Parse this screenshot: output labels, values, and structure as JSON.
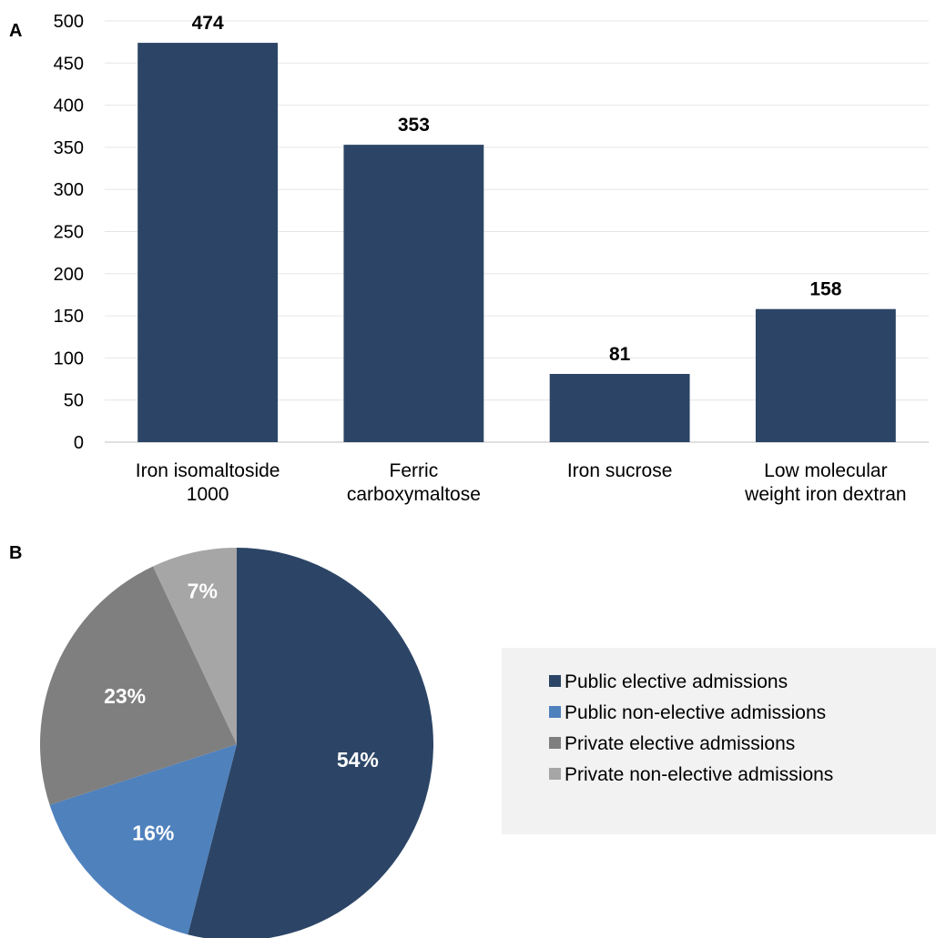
{
  "chart_data": [
    {
      "panel": "A",
      "type": "bar",
      "categories": [
        [
          "Iron isomaltoside",
          "1000"
        ],
        [
          "Ferric",
          "carboxymaltose"
        ],
        [
          "Iron sucrose"
        ],
        [
          "Low molecular",
          "weight iron dextran"
        ]
      ],
      "values": [
        474,
        353,
        81,
        158
      ],
      "data_labels": [
        "474",
        "353",
        "81",
        "158"
      ],
      "ylim": [
        0,
        500
      ],
      "yticks": [
        "0",
        "50",
        "100",
        "150",
        "200",
        "250",
        "300",
        "350",
        "400",
        "450",
        "500"
      ],
      "grid": true,
      "color": "#2c4566"
    },
    {
      "panel": "B",
      "type": "pie",
      "series": [
        {
          "name": "Public elective admissions",
          "value": 54,
          "label": "54%",
          "color": "#2c4566"
        },
        {
          "name": "Public non-elective admissions",
          "value": 16,
          "label": "16%",
          "color": "#4f81bd"
        },
        {
          "name": "Private elective admissions",
          "value": 23,
          "label": "23%",
          "color": "#7f7f7f"
        },
        {
          "name": "Private non-elective admissions",
          "value": 7,
          "label": "7%",
          "color": "#a6a6a6"
        }
      ],
      "legend_position": "right",
      "legend_background": "#f2f2f2"
    }
  ]
}
